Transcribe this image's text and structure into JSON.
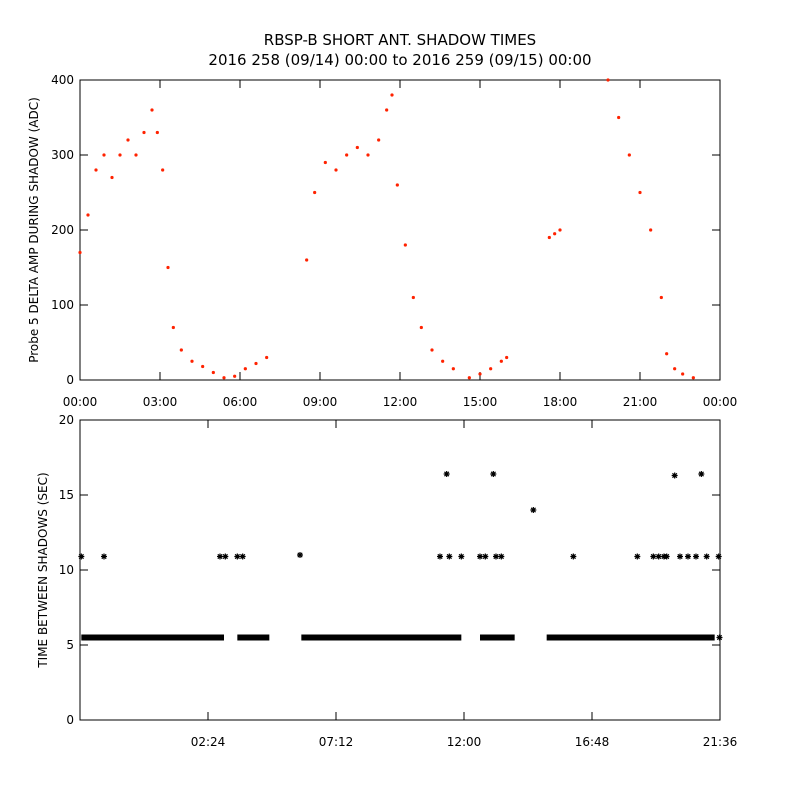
{
  "title": {
    "line1": "RBSP-B SHORT ANT. SHADOW TIMES",
    "line2": "2016 258 (09/14) 00:00 to 2016 259 (09/15) 00:00"
  },
  "colors": {
    "delta": "#ff2200",
    "gap": "#000000"
  },
  "chart_data": [
    {
      "type": "scatter",
      "ylabel": "Probe 5 DELTA AMP DURING SHADOW (ADC)",
      "xlim": [
        0,
        24
      ],
      "ylim": [
        0,
        400
      ],
      "x_ticks": [
        "00:00",
        "03:00",
        "06:00",
        "09:00",
        "12:00",
        "15:00",
        "18:00",
        "21:00",
        "00:00"
      ],
      "y_ticks": [
        0,
        100,
        200,
        300,
        400
      ],
      "grid": false,
      "series": [
        {
          "color": "#ff2200",
          "points": [
            [
              0.0,
              170
            ],
            [
              0.3,
              220
            ],
            [
              0.6,
              280
            ],
            [
              0.9,
              300
            ],
            [
              1.2,
              270
            ],
            [
              1.5,
              300
            ],
            [
              1.8,
              320
            ],
            [
              2.1,
              300
            ],
            [
              2.4,
              330
            ],
            [
              2.7,
              360
            ],
            [
              2.9,
              330
            ],
            [
              3.1,
              280
            ],
            [
              3.3,
              150
            ],
            [
              3.5,
              70
            ],
            [
              3.8,
              40
            ],
            [
              4.2,
              25
            ],
            [
              4.6,
              18
            ],
            [
              5.0,
              10
            ],
            [
              5.4,
              3
            ],
            [
              5.8,
              5
            ],
            [
              6.2,
              15
            ],
            [
              6.6,
              22
            ],
            [
              7.0,
              30
            ],
            [
              8.5,
              160
            ],
            [
              8.8,
              250
            ],
            [
              9.2,
              290
            ],
            [
              9.6,
              280
            ],
            [
              10.0,
              300
            ],
            [
              10.4,
              310
            ],
            [
              10.8,
              300
            ],
            [
              11.2,
              320
            ],
            [
              11.5,
              360
            ],
            [
              11.7,
              380
            ],
            [
              11.9,
              260
            ],
            [
              12.2,
              180
            ],
            [
              12.5,
              110
            ],
            [
              12.8,
              70
            ],
            [
              13.2,
              40
            ],
            [
              13.6,
              25
            ],
            [
              14.0,
              15
            ],
            [
              14.6,
              3
            ],
            [
              15.0,
              8
            ],
            [
              15.4,
              15
            ],
            [
              15.8,
              25
            ],
            [
              16.0,
              30
            ],
            [
              17.6,
              190
            ],
            [
              17.8,
              195
            ],
            [
              18.0,
              200
            ],
            [
              19.8,
              400
            ],
            [
              20.2,
              350
            ],
            [
              20.6,
              300
            ],
            [
              21.0,
              250
            ],
            [
              21.4,
              200
            ],
            [
              21.8,
              110
            ],
            [
              22.0,
              35
            ],
            [
              22.3,
              15
            ],
            [
              22.6,
              8
            ],
            [
              23.0,
              3
            ]
          ]
        }
      ]
    },
    {
      "type": "scatter",
      "ylabel": "TIME BETWEEN SHADOWS (SEC)",
      "xlim": [
        0,
        24
      ],
      "ylim": [
        0,
        20
      ],
      "x_ticks": [
        "02:24",
        "07:12",
        "12:00",
        "16:48",
        "21:36"
      ],
      "y_ticks": [
        0,
        5,
        10,
        15,
        20
      ],
      "grid": false,
      "series": [
        {
          "color": "#000000",
          "marker": "asterisk",
          "points": [
            [
              0.05,
              10.9
            ],
            [
              0.9,
              10.9
            ],
            [
              5.25,
              10.9
            ],
            [
              5.45,
              10.9
            ],
            [
              5.9,
              10.9
            ],
            [
              6.1,
              10.9
            ],
            [
              8.25,
              11.0
            ],
            [
              13.5,
              10.9
            ],
            [
              13.75,
              16.4
            ],
            [
              13.85,
              10.9
            ],
            [
              14.3,
              10.9
            ],
            [
              15.0,
              10.9
            ],
            [
              15.2,
              10.9
            ],
            [
              15.5,
              16.4
            ],
            [
              15.6,
              10.9
            ],
            [
              15.8,
              10.9
            ],
            [
              17.0,
              14.0
            ],
            [
              18.5,
              10.9
            ],
            [
              20.9,
              10.9
            ],
            [
              21.5,
              10.9
            ],
            [
              21.7,
              10.9
            ],
            [
              21.9,
              10.9
            ],
            [
              22.0,
              10.9
            ],
            [
              22.3,
              16.3
            ],
            [
              22.5,
              10.9
            ],
            [
              22.8,
              10.9
            ],
            [
              23.1,
              10.9
            ],
            [
              23.3,
              16.4
            ],
            [
              23.5,
              10.9
            ],
            [
              23.95,
              10.9
            ],
            [
              23.98,
              5.5
            ]
          ],
          "bands": [
            [
              0.05,
              5.4,
              5.5
            ],
            [
              5.9,
              7.1,
              5.5
            ],
            [
              8.3,
              14.3,
              5.5
            ],
            [
              15.0,
              16.3,
              5.5
            ],
            [
              17.5,
              23.8,
              5.5
            ]
          ]
        }
      ]
    }
  ]
}
